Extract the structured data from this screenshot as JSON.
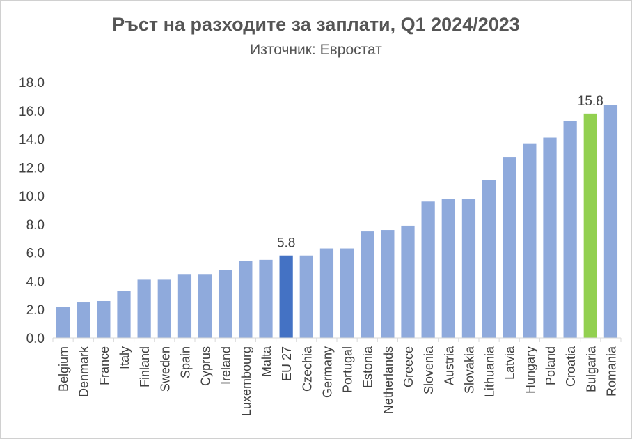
{
  "chart_data": {
    "type": "bar",
    "title": "Ръст на разходите за заплати, Q1 2024/2023",
    "subtitle": "Източник: Евростат",
    "xlabel": "",
    "ylabel": "",
    "ylim": [
      0,
      18
    ],
    "yticks": [
      "0.0",
      "2.0",
      "4.0",
      "6.0",
      "8.0",
      "10.0",
      "12.0",
      "14.0",
      "16.0",
      "18.0"
    ],
    "grid": false,
    "legend": "none",
    "categories": [
      "Belgium",
      "Denmark",
      "France",
      "Italy",
      "Finland",
      "Sweden",
      "Spain",
      "Cyprus",
      "Ireland",
      "Luxembourg",
      "Malta",
      "EU 27",
      "Czechia",
      "Germany",
      "Portugal",
      "Estonia",
      "Netherlands",
      "Greece",
      "Slovenia",
      "Austria",
      "Slovakia",
      "Lithuania",
      "Latvia",
      "Hungary",
      "Poland",
      "Croatia",
      "Bulgaria",
      "Romania"
    ],
    "values": [
      2.2,
      2.5,
      2.6,
      3.3,
      4.1,
      4.1,
      4.5,
      4.5,
      4.8,
      5.4,
      5.5,
      5.8,
      5.8,
      6.3,
      6.3,
      7.5,
      7.6,
      7.9,
      9.6,
      9.8,
      9.8,
      11.1,
      12.7,
      13.7,
      14.1,
      15.3,
      15.8,
      16.4
    ],
    "data_labels": [
      {
        "category": "EU 27",
        "text": "5.8"
      },
      {
        "category": "Bulgaria",
        "text": "15.8"
      }
    ],
    "colors": {
      "default": "#8faadc",
      "EU 27": "#4472c4",
      "Bulgaria": "#92d050",
      "text": "#404040",
      "axis": "#d9d9d9"
    }
  }
}
